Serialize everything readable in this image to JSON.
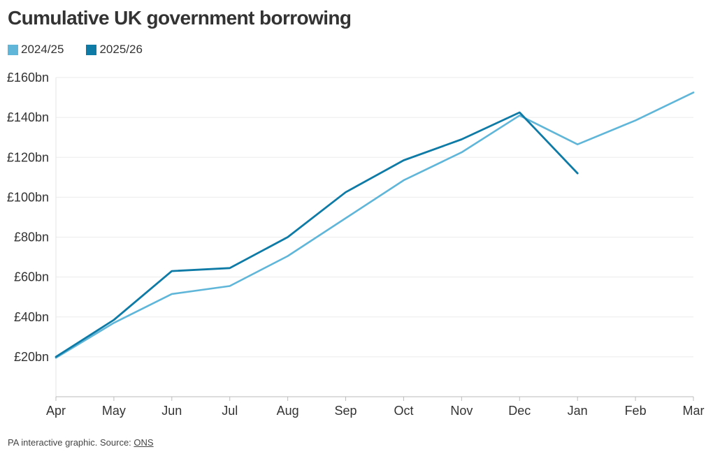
{
  "chart_data": {
    "type": "line",
    "title": "Cumulative UK government borrowing",
    "categories": [
      "Apr",
      "May",
      "Jun",
      "Jul",
      "Aug",
      "Sep",
      "Oct",
      "Nov",
      "Dec",
      "Jan",
      "Feb",
      "Mar"
    ],
    "ylim": [
      0,
      160
    ],
    "yticks": [
      20,
      40,
      60,
      80,
      100,
      120,
      140,
      160
    ],
    "ytick_labels": [
      "£20bn",
      "£40bn",
      "£60bn",
      "£80bn",
      "£100bn",
      "£120bn",
      "£140bn",
      "£160bn"
    ],
    "grid": true,
    "legend_position": "top-left",
    "series": [
      {
        "name": "2024/25",
        "color": "#5fb6d9",
        "values": [
          19.5,
          37,
          51.5,
          55.5,
          70.5,
          89.5,
          108.5,
          122.5,
          141,
          126.5,
          138.5,
          152.5
        ]
      },
      {
        "name": "2025/26",
        "color": "#0e7aa6",
        "values": [
          20,
          38.5,
          63,
          64.5,
          80,
          102.5,
          118.5,
          129,
          142.5,
          112,
          null,
          null
        ]
      }
    ]
  },
  "footer": {
    "text": "PA interactive graphic. Source: ",
    "source_link": "ONS"
  }
}
